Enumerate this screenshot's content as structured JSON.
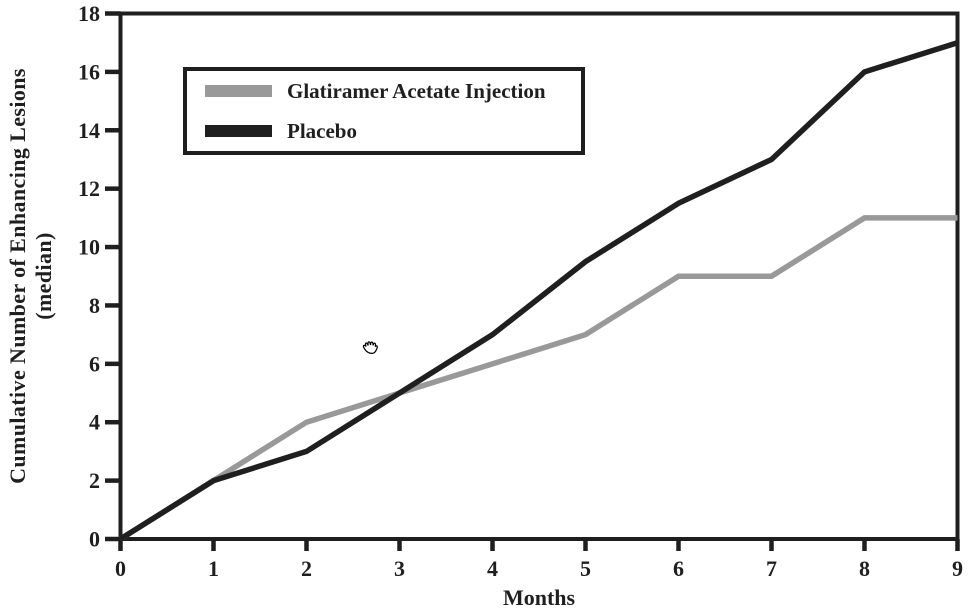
{
  "figure": {
    "background": "#ffffff",
    "ink_color": "#1f1f1f",
    "gray_color": "#999999"
  },
  "chart_data": {
    "type": "line",
    "title": "",
    "xlabel": "Months",
    "ylabel": "Cumulative Number of Enhancing Lesions",
    "ylabel_line2": "(median)",
    "xlim": [
      0,
      9
    ],
    "ylim": [
      0,
      18
    ],
    "x_ticks": [
      0,
      1,
      2,
      3,
      4,
      5,
      6,
      7,
      8,
      9
    ],
    "y_ticks": [
      0,
      2,
      4,
      6,
      8,
      10,
      12,
      14,
      16,
      18
    ],
    "grid": false,
    "legend_position": "upper-left",
    "x": [
      0,
      1,
      2,
      3,
      4,
      5,
      6,
      7,
      8,
      9
    ],
    "series": [
      {
        "name": "Glatiramer Acetate Injection",
        "color": "#999999",
        "values": [
          0,
          2,
          4,
          5,
          6,
          7,
          9,
          9,
          11,
          11
        ]
      },
      {
        "name": "Placebo",
        "color": "#1f1f1f",
        "values": [
          0,
          2,
          3,
          5,
          7,
          9.5,
          11.5,
          13,
          16,
          17
        ]
      }
    ]
  },
  "cursor": {
    "type": "grab-hand"
  }
}
